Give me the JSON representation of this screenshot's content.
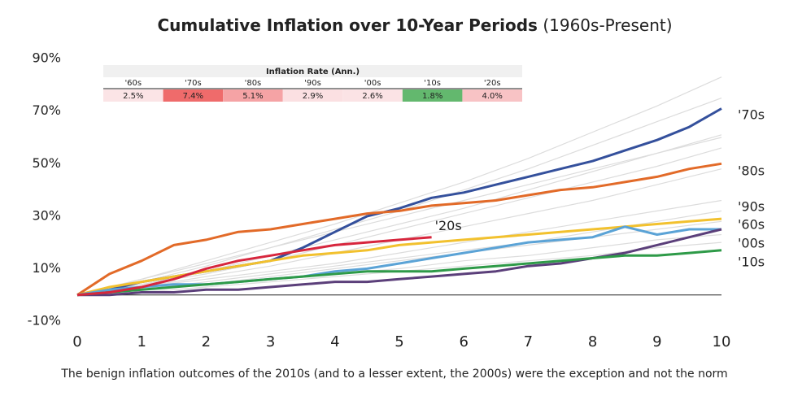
{
  "chart_data": {
    "type": "line",
    "title": "Cumulative Inflation over 10-Year Periods",
    "subtitle": "(1960s-Present)",
    "caption": "The benign inflation outcomes of the 2010s (and to a lesser extent, the 2000s) were the exception and not the norm",
    "xlim": [
      0,
      10
    ],
    "xticks": [
      0,
      1,
      2,
      3,
      4,
      5,
      6,
      7,
      8,
      9,
      10
    ],
    "ylim": [
      -10,
      95
    ],
    "yticks": [
      {
        "value": -10,
        "label": "-10%"
      },
      {
        "value": 10,
        "label": "10%"
      },
      {
        "value": 30,
        "label": "30%"
      },
      {
        "value": 50,
        "label": "50%"
      },
      {
        "value": 70,
        "label": "70%"
      },
      {
        "value": 90,
        "label": "90%"
      }
    ],
    "x": [
      0,
      0.5,
      1,
      1.5,
      2,
      2.5,
      3,
      3.5,
      4,
      4.5,
      5,
      5.5,
      6,
      6.5,
      7,
      7.5,
      8,
      8.5,
      9,
      9.5,
      10
    ],
    "series": [
      {
        "name": "'70s",
        "color": "#34509c",
        "values": [
          0,
          2,
          5,
          7,
          9,
          11,
          13,
          18,
          24,
          30,
          33,
          37,
          39,
          42,
          45,
          48,
          51,
          55,
          59,
          64,
          71
        ]
      },
      {
        "name": "'80s",
        "color": "#e26a28",
        "values": [
          0,
          8,
          13,
          19,
          21,
          24,
          25,
          27,
          29,
          31,
          32,
          34,
          35,
          36,
          38,
          40,
          41,
          43,
          45,
          48,
          50
        ]
      },
      {
        "name": "'90s",
        "color": "#f2c12e",
        "values": [
          0,
          3,
          5,
          7,
          9,
          11,
          13,
          15,
          16,
          17,
          19,
          20,
          21,
          22,
          23,
          24,
          25,
          26,
          27,
          28,
          29
        ]
      },
      {
        "name": "'60s",
        "color": "#5ba3d6",
        "values": [
          0,
          2,
          3,
          4,
          4,
          5,
          6,
          7,
          9,
          10,
          12,
          14,
          16,
          18,
          20,
          21,
          22,
          26,
          23,
          25,
          25
        ]
      },
      {
        "name": "'00s",
        "color": "#5b3f7a",
        "values": [
          0,
          0,
          1,
          1,
          2,
          2,
          3,
          4,
          5,
          5,
          6,
          7,
          8,
          9,
          11,
          12,
          14,
          16,
          19,
          22,
          25
        ]
      },
      {
        "name": "'10s",
        "color": "#2e9a48",
        "values": [
          0,
          1,
          2,
          3,
          4,
          5,
          6,
          7,
          8,
          9,
          9,
          9,
          10,
          11,
          12,
          13,
          14,
          15,
          15,
          16,
          17
        ]
      },
      {
        "name": "'20s",
        "color": "#d7263d",
        "values": [
          0,
          1,
          3,
          6,
          10,
          13,
          15,
          17,
          19,
          20,
          21,
          22,
          null,
          null,
          null,
          null,
          null,
          null,
          null,
          null,
          null
        ]
      }
    ],
    "background_color": "#dcdcdc",
    "background_x": [
      0,
      1,
      2,
      3,
      4,
      5,
      6,
      7,
      8,
      9,
      10
    ],
    "background_lines": [
      [
        0,
        6,
        13,
        20,
        27,
        35,
        43,
        52,
        62,
        72,
        83
      ],
      [
        0,
        5,
        11,
        18,
        25,
        32,
        40,
        48,
        57,
        66,
        75
      ],
      [
        0,
        6,
        12,
        18,
        24,
        30,
        36,
        42,
        48,
        54,
        60
      ],
      [
        0,
        4,
        9,
        15,
        21,
        27,
        33,
        40,
        47,
        54,
        61
      ],
      [
        0,
        4,
        8,
        13,
        19,
        25,
        31,
        37,
        43,
        49,
        56
      ],
      [
        0,
        3,
        7,
        11,
        16,
        21,
        26,
        31,
        36,
        42,
        48
      ],
      [
        0,
        3,
        6,
        9,
        12,
        16,
        20,
        24,
        28,
        32,
        36
      ],
      [
        0,
        2,
        5,
        8,
        11,
        14,
        17,
        20,
        24,
        28,
        32
      ],
      [
        0,
        2,
        4,
        7,
        10,
        13,
        16,
        19,
        22,
        25,
        28
      ],
      [
        0,
        2,
        4,
        6,
        8,
        10,
        13,
        15,
        18,
        21,
        23
      ],
      [
        0,
        1,
        3,
        5,
        7,
        9,
        11,
        13,
        15,
        18,
        20
      ]
    ],
    "rate_table": {
      "title": "Inflation Rate (Ann.)",
      "columns": [
        "'60s",
        "'70s",
        "'80s",
        "'90s",
        "'00s",
        "'10s",
        "'20s"
      ],
      "values": [
        2.5,
        7.4,
        5.1,
        2.9,
        2.6,
        1.8,
        4.0
      ],
      "value_labels": [
        "2.5%",
        "7.4%",
        "5.1%",
        "2.9%",
        "2.6%",
        "1.8%",
        "4.0%"
      ],
      "colors": [
        "#fbe4e6",
        "#ef6b6b",
        "#f5a3a5",
        "#fbe0e2",
        "#fbe3e5",
        "#63b86e",
        "#f8c3c5"
      ]
    }
  }
}
